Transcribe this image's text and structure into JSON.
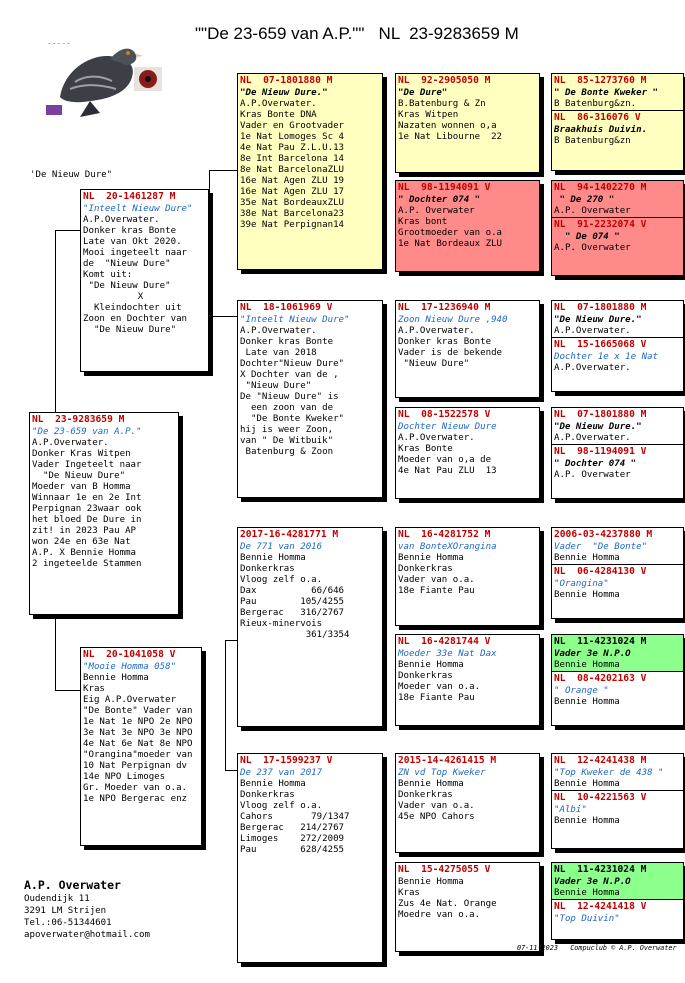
{
  "title": "\"\"De 23-659 van A.P.\"\"   NL  23-9283659 M",
  "side_label": "'De Nieuw Dure\"",
  "owner": {
    "name": "A.P. Overwater",
    "address": "Oudendijk 11",
    "city": "3291 LM  Strijen",
    "phone": "Tel.:06-51344601",
    "email": "apoverwater@hotmail.com"
  },
  "footer": "07-11-2023   Compuclub © A.P. Overwater",
  "boxes": {
    "main": {
      "ring": "NL  23-9283659 M",
      "name": "\"De 23-659 van A.P.\"",
      "lines": [
        "A.P.Overwater.",
        "Donker Kras Witpen",
        "Vader Ingeteelt naar",
        "  \"De Nieuw Dure\"",
        "Moeder van B Homma",
        "Winnaar 1e en 2e Int",
        "Perpignan 23waar ook",
        "het bloed De Dure in",
        "zit! in 2023 Pau AP",
        "won 24e en 63e Nat",
        "A.P. X Bennie Homma",
        "2 ingeteelde Stammen"
      ]
    },
    "f": {
      "ring": "NL  20-1461287 M",
      "name": "\"Inteelt Nieuw Dure\"",
      "lines": [
        "A.P.Overwater.",
        "Donker kras Bonte",
        "Late van Okt 2020.",
        "Mooi ingeteelt naar",
        "de  \"Nieuw Dure\"",
        "Komt uit:",
        " \"De Nieuw Dure\"",
        "          X",
        "  Kleindochter uit",
        "Zoon en Dochter van",
        "  \"De Nieuw Dure\""
      ]
    },
    "m": {
      "ring": "NL  20-1041058 V",
      "name": "\"Mooie Homma 058\"",
      "lines": [
        "Bennie Homma",
        "Kras",
        "Eig A.P.Overwater",
        "\"De Bonte\" Vader van",
        "1e Nat 1e NPO 2e NPO",
        "3e Nat 3e NPO 3e NPO",
        "4e Nat 6e Nat 8e NPO",
        "\"Orangina\"moeder van",
        "10 Nat Perpignan dv",
        "14e NPO Limoges",
        "Gr. Moeder van o.a.",
        "1e NPO Bergerac enz"
      ]
    },
    "ff": {
      "ring": "NL  07-1801880 M",
      "name": "\"De Nieuw Dure.\"",
      "lines": [
        "A.P.Overwater.",
        "Kras Bonte DNA",
        "Vader en Grootvader",
        "1e Nat Lomoges Sc 4",
        "4e Nat Pau Z.L.U.13",
        "8e Int Barcelona 14",
        "8e Nat BarcelonaZLU",
        "16e Nat Agen ZLU 19",
        "16e Nat Agen ZLU 17",
        "35e Nat BordeauxZLU",
        "38e Nat Barcelona23",
        "39e Nat Perpignan14"
      ]
    },
    "fm": {
      "ring": "NL  18-1061969 V",
      "name": "\"Inteelt Nieuw Dure\"",
      "lines": [
        "A.P.Overwater.",
        "Donker kras Bonte",
        " Late van 2018",
        "Dochter\"Nieuw Dure\"",
        "X Dochter van de ,",
        " \"Nieuw Dure\"",
        "De \"Nieuw Dure\" is",
        "  een zoon van de",
        "  \"De Bonte Kweker\"",
        "hij is weer Zoon,",
        "van \" De Witbuik\"",
        " Batenburg & Zoon"
      ]
    },
    "mf": {
      "ring": "2017-16-4281771 M",
      "name": "De 771 van 2016",
      "lines": [
        "Bennie Homma",
        "Donkerkras",
        "Vloog zelf o.a.",
        "Dax          66/646",
        "Pau        105/4255",
        "Bergerac   316/2767",
        "Rieux-minervois",
        "            361/3354"
      ]
    },
    "mm": {
      "ring": "NL  17-1599237 V",
      "name": "De 237 van 2017",
      "lines": [
        "Bennie Homma",
        "Donkerkras",
        "Vloog zelf o.a.",
        "Cahors       79/1347",
        "Bergerac   214/2767",
        "Limoges    272/2009",
        "Pau        628/4255"
      ]
    },
    "fff": {
      "ring": "NL  92-2905050 M",
      "name": "\"De Dure\"",
      "lines": [
        "B.Batenburg & Zn",
        "Kras Witpen",
        "Nazaten wonnen o,a",
        "1e Nat Libourne  22"
      ]
    },
    "ffm": {
      "ring": "NL  98-1194091 V",
      "name": "\" Dochter 074 \"",
      "lines": [
        "A.P. Overwater",
        "Kras bont",
        "Grootmoeder van o.a",
        "1e Nat Bordeaux ZLU"
      ]
    },
    "fmf": {
      "ring": "NL  17-1236940 M",
      "name": "Zoon Nieuw Dure ,940",
      "lines": [
        "A.P.Overwater.",
        "Donker kras Bonte",
        "Vader is de bekende",
        " \"Nieuw Dure\""
      ]
    },
    "fmm": {
      "ring": "NL  08-1522578 V",
      "name": "Dochter Nieuw Dure",
      "lines": [
        "A.P.Overwater.",
        "Kras Bonte",
        "Moeder van o,a de",
        "4e Nat Pau ZLU  13"
      ]
    },
    "mff": {
      "ring": "NL  16-4281752 M",
      "name": "van BonteXOrangina",
      "lines": [
        "Bennie Homma",
        "Donkerkras",
        "Vader van o.a.",
        "18e Fiante Pau"
      ]
    },
    "mfm": {
      "ring": "NL  16-4281744 V",
      "name": "Moeder 33e Nat Dax",
      "lines": [
        "Bennie Homma",
        "Donkerkras",
        "Moeder van o.a.",
        "18e Fiante Pau"
      ]
    },
    "mmf": {
      "ring": "2015-14-4261415 M",
      "name": "ZN vd Top Kweker",
      "lines": [
        "Bennie Homma",
        "Donkerkras",
        "Vader van o.a.",
        "45e NPO Cahors"
      ]
    },
    "mmm": {
      "ring": "NL  15-4275055 V",
      "name": "",
      "lines": [
        "Bennie Homma",
        "Kras",
        "Zus 4e Nat. Orange",
        "Moedre van o.a."
      ]
    },
    "g1": {
      "ring": "NL  85-1273760 M",
      "name": "\" De Bonte Kweker \"",
      "line": "B Batenburg&zn."
    },
    "g2": {
      "ring": "NL  86-316076 V",
      "name": "Braakhuis Duivin.",
      "line": "B Batenburg&zn"
    },
    "g3": {
      "ring": "NL  94-1402270 M",
      "name": " \" De 270 \"",
      "line": "A.P. Overwater"
    },
    "g4": {
      "ring": "NL  91-2232074 V",
      "name": "  \" De 074 \"",
      "line": "A.P. Overwater"
    },
    "g5": {
      "ring": "NL  07-1801880 M",
      "name": "\"De Nieuw Dure.\"",
      "line": "A.P.Overwater."
    },
    "g6": {
      "ring": "NL  15-1665068 V",
      "name": "Dochter 1e x 1e Nat",
      "line": "A.P.Overwater."
    },
    "g7": {
      "ring": "NL  07-1801880 M",
      "name": "\"De Nieuw Dure.\"",
      "line": "A.P.Overwater."
    },
    "g8": {
      "ring": "NL  98-1194091 V",
      "name": "\" Dochter 074 \"",
      "line": "A.P. Overwater"
    },
    "g9": {
      "ring": "2006-03-4237880 M",
      "name": "Vader  \"De Bonte\"",
      "line": "Bennie Homma"
    },
    "g10": {
      "ring": "NL  06-4284130 V",
      "name": "\"Orangina\"",
      "line": "Bennie Homma"
    },
    "g11": {
      "ring": "NL  11-4231024 M",
      "name": "Vader 3e N.P.O",
      "line": "Bennie Homma"
    },
    "g12": {
      "ring": "NL  08-4202163 V",
      "name": "\" Orange \"",
      "line": "Bennie Homma"
    },
    "g13": {
      "ring": "NL  12-4241438 M",
      "name": "\"Top Kweker de 438 \"",
      "line": "Bennie Homma"
    },
    "g14": {
      "ring": "NL  10-4221563 V",
      "name": "\"Albi\"",
      "line": "Bennie Homma"
    },
    "g15": {
      "ring": "NL  11-4231024 M",
      "name": "Vader 3e N.P.O",
      "line": "Bennie Homma"
    },
    "g16": {
      "ring": "NL  12-4241418 V",
      "name": "\"Top Duivin\"",
      "line": ""
    }
  }
}
